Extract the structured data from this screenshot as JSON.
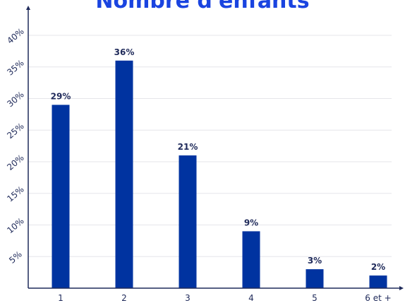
{
  "colors": {
    "bar": "#0033a0",
    "title": "#1a44e0",
    "axis": "#1f2a5a",
    "grid": "#e6e6ea",
    "label": "#1f2a5a"
  },
  "chart_data": {
    "type": "bar",
    "title": "Nombre d'enfants",
    "categories": [
      "1",
      "2",
      "3",
      "4",
      "5",
      "6 et +"
    ],
    "values": [
      29,
      36,
      21,
      9,
      3,
      2
    ],
    "data_labels": [
      "29%",
      "36%",
      "21%",
      "9%",
      "3%",
      "2%"
    ],
    "y_ticks": [
      5,
      10,
      15,
      20,
      25,
      30,
      35,
      40
    ],
    "y_tick_labels": [
      "5%",
      "10%",
      "15%",
      "20%",
      "25%",
      "30%",
      "35%",
      "40%"
    ],
    "ylim": [
      0,
      40
    ],
    "grid": true,
    "legend": "none",
    "xlabel": "",
    "ylabel": ""
  }
}
